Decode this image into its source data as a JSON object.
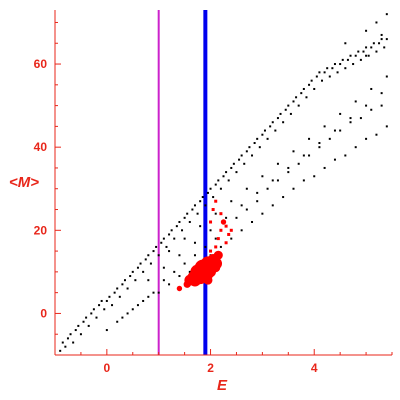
{
  "chart_data": {
    "type": "scatter",
    "title": "",
    "xlabel": "E",
    "ylabel": "<M>",
    "xlim": [
      -1.0,
      5.5
    ],
    "ylim": [
      -10,
      73
    ],
    "xticks": [
      0,
      2,
      4
    ],
    "yticks": [
      0,
      20,
      40,
      60
    ],
    "grid": false,
    "legend": "none",
    "colors": {
      "axis": "#e8261a",
      "tick_labels": "#e8261a",
      "background_points": "#000000",
      "highlight_points": "#ff0000",
      "magenta_line": "#cc22cc",
      "blue_line": "#0000ee"
    },
    "vertical_lines": [
      {
        "x": 1.0,
        "color": "#cc22cc",
        "style": "thin"
      },
      {
        "x": 1.9,
        "color": "#0000ee",
        "style": "thick"
      }
    ],
    "series": [
      {
        "kind": "background",
        "color": "#000000",
        "points": [
          [
            -0.9,
            -9
          ],
          [
            -0.85,
            -7
          ],
          [
            -0.8,
            -8
          ],
          [
            -0.75,
            -6
          ],
          [
            -0.7,
            -5
          ],
          [
            -0.65,
            -7
          ],
          [
            -0.6,
            -4
          ],
          [
            -0.55,
            -3
          ],
          [
            -0.5,
            -5
          ],
          [
            -0.45,
            -2
          ],
          [
            -0.4,
            -1
          ],
          [
            -0.35,
            -3
          ],
          [
            -0.3,
            0
          ],
          [
            -0.25,
            1
          ],
          [
            -0.2,
            -1
          ],
          [
            -0.15,
            2
          ],
          [
            -0.1,
            3
          ],
          [
            -0.05,
            1
          ],
          [
            0.0,
            3
          ],
          [
            0.05,
            4
          ],
          [
            0.1,
            2
          ],
          [
            0.15,
            5
          ],
          [
            0.2,
            6
          ],
          [
            0.25,
            4
          ],
          [
            0.3,
            7
          ],
          [
            0.35,
            8
          ],
          [
            0.4,
            6
          ],
          [
            0.45,
            9
          ],
          [
            0.5,
            10
          ],
          [
            0.55,
            8
          ],
          [
            0.6,
            11
          ],
          [
            0.65,
            12
          ],
          [
            0.7,
            10
          ],
          [
            0.75,
            13
          ],
          [
            0.8,
            14
          ],
          [
            0.85,
            12
          ],
          [
            0.9,
            15
          ],
          [
            0.95,
            16
          ],
          [
            1.0,
            14
          ],
          [
            1.05,
            17
          ],
          [
            1.1,
            18
          ],
          [
            1.15,
            16
          ],
          [
            1.2,
            19
          ],
          [
            1.25,
            20
          ],
          [
            1.3,
            18
          ],
          [
            1.35,
            21
          ],
          [
            1.4,
            22
          ],
          [
            1.45,
            20
          ],
          [
            1.5,
            23
          ],
          [
            1.55,
            24
          ],
          [
            1.6,
            22
          ],
          [
            1.65,
            25
          ],
          [
            1.7,
            26
          ],
          [
            1.75,
            24
          ],
          [
            1.8,
            27
          ],
          [
            1.85,
            28
          ],
          [
            1.9,
            26
          ],
          [
            1.95,
            29
          ],
          [
            2.0,
            30
          ],
          [
            2.05,
            28
          ],
          [
            2.1,
            31
          ],
          [
            2.15,
            32
          ],
          [
            2.2,
            30
          ],
          [
            2.25,
            33
          ],
          [
            2.3,
            34
          ],
          [
            2.35,
            32
          ],
          [
            2.4,
            35
          ],
          [
            2.45,
            36
          ],
          [
            2.5,
            34
          ],
          [
            2.55,
            37
          ],
          [
            2.6,
            38
          ],
          [
            2.65,
            36
          ],
          [
            2.7,
            39
          ],
          [
            2.75,
            40
          ],
          [
            2.8,
            38
          ],
          [
            2.85,
            41
          ],
          [
            2.9,
            42
          ],
          [
            2.95,
            40
          ],
          [
            3.0,
            43
          ],
          [
            3.05,
            44
          ],
          [
            3.1,
            42
          ],
          [
            3.15,
            45
          ],
          [
            3.2,
            46
          ],
          [
            3.25,
            44
          ],
          [
            3.3,
            47
          ],
          [
            3.35,
            48
          ],
          [
            3.4,
            46
          ],
          [
            3.45,
            49
          ],
          [
            3.5,
            50
          ],
          [
            3.55,
            48
          ],
          [
            3.6,
            51
          ],
          [
            3.65,
            52
          ],
          [
            3.7,
            50
          ],
          [
            3.75,
            53
          ],
          [
            3.8,
            54
          ],
          [
            3.85,
            52
          ],
          [
            3.9,
            55
          ],
          [
            3.95,
            56
          ],
          [
            4.0,
            54
          ],
          [
            4.05,
            57
          ],
          [
            4.1,
            58
          ],
          [
            4.15,
            56
          ],
          [
            4.2,
            58
          ],
          [
            4.25,
            59
          ],
          [
            4.3,
            57
          ],
          [
            4.35,
            59
          ],
          [
            4.4,
            60
          ],
          [
            4.45,
            58
          ],
          [
            4.5,
            60
          ],
          [
            4.55,
            61
          ],
          [
            4.6,
            59
          ],
          [
            4.65,
            61
          ],
          [
            4.7,
            62
          ],
          [
            4.75,
            60
          ],
          [
            4.8,
            62
          ],
          [
            4.85,
            63
          ],
          [
            4.9,
            61
          ],
          [
            4.95,
            63
          ],
          [
            5.0,
            64
          ],
          [
            5.05,
            62
          ],
          [
            5.1,
            64
          ],
          [
            5.15,
            65
          ],
          [
            5.2,
            63
          ],
          [
            5.25,
            65
          ],
          [
            5.3,
            66
          ],
          [
            5.35,
            64
          ],
          [
            5.4,
            66
          ],
          [
            0.0,
            -4
          ],
          [
            0.2,
            -2
          ],
          [
            0.4,
            0
          ],
          [
            0.6,
            2
          ],
          [
            0.8,
            4
          ],
          [
            1.0,
            5
          ],
          [
            1.2,
            7
          ],
          [
            1.4,
            9
          ],
          [
            1.6,
            10
          ],
          [
            1.8,
            12
          ],
          [
            2.0,
            14
          ],
          [
            2.2,
            16
          ],
          [
            2.4,
            18
          ],
          [
            2.6,
            20
          ],
          [
            2.8,
            22
          ],
          [
            3.0,
            24
          ],
          [
            3.2,
            26
          ],
          [
            3.4,
            28
          ],
          [
            3.6,
            30
          ],
          [
            3.8,
            32
          ],
          [
            4.0,
            33
          ],
          [
            4.2,
            35
          ],
          [
            4.4,
            37
          ],
          [
            4.6,
            38
          ],
          [
            4.8,
            40
          ],
          [
            5.0,
            42
          ],
          [
            5.2,
            43
          ],
          [
            5.4,
            45
          ],
          [
            0.3,
            -1
          ],
          [
            0.5,
            1
          ],
          [
            0.7,
            3
          ],
          [
            0.9,
            5
          ],
          [
            1.1,
            8
          ],
          [
            1.3,
            10
          ],
          [
            1.5,
            12
          ],
          [
            1.7,
            14
          ],
          [
            1.9,
            16
          ],
          [
            2.1,
            18
          ],
          [
            2.3,
            21
          ],
          [
            2.5,
            23
          ],
          [
            2.7,
            25
          ],
          [
            2.9,
            27
          ],
          [
            3.1,
            30
          ],
          [
            3.3,
            32
          ],
          [
            3.5,
            34
          ],
          [
            3.7,
            36
          ],
          [
            3.9,
            38
          ],
          [
            4.1,
            40
          ],
          [
            4.3,
            42
          ],
          [
            4.5,
            44
          ],
          [
            4.7,
            46
          ],
          [
            4.9,
            47
          ],
          [
            5.1,
            49
          ],
          [
            5.3,
            50
          ],
          [
            1.2,
            15
          ],
          [
            1.5,
            18
          ],
          [
            1.8,
            21
          ],
          [
            2.1,
            24
          ],
          [
            2.4,
            27
          ],
          [
            2.7,
            30
          ],
          [
            3.0,
            33
          ],
          [
            3.3,
            36
          ],
          [
            3.6,
            39
          ],
          [
            3.9,
            42
          ],
          [
            4.2,
            45
          ],
          [
            4.5,
            48
          ],
          [
            4.8,
            51
          ],
          [
            5.1,
            54
          ],
          [
            5.4,
            57
          ],
          [
            0.8,
            8
          ],
          [
            1.1,
            11
          ],
          [
            1.4,
            14
          ],
          [
            1.7,
            17
          ],
          [
            2.0,
            20
          ],
          [
            2.3,
            23
          ],
          [
            2.6,
            26
          ],
          [
            2.9,
            29
          ],
          [
            3.2,
            32
          ],
          [
            3.5,
            35
          ],
          [
            3.8,
            38
          ],
          [
            4.1,
            41
          ],
          [
            4.4,
            44
          ],
          [
            4.7,
            47
          ],
          [
            5.0,
            50
          ],
          [
            5.3,
            53
          ],
          [
            4.6,
            65
          ],
          [
            5.0,
            68
          ],
          [
            5.2,
            70
          ],
          [
            5.4,
            72
          ],
          [
            5.0,
            62
          ],
          [
            5.3,
            67
          ]
        ]
      },
      {
        "kind": "highlight",
        "color": "#ff0000",
        "points": [
          [
            1.4,
            6,
            3
          ],
          [
            1.55,
            7,
            4
          ],
          [
            1.6,
            8,
            6
          ],
          [
            1.65,
            9,
            5
          ],
          [
            1.7,
            8,
            7
          ],
          [
            1.75,
            10,
            8
          ],
          [
            1.8,
            9,
            9
          ],
          [
            1.85,
            11,
            9
          ],
          [
            1.9,
            10,
            10
          ],
          [
            1.95,
            12,
            8
          ],
          [
            2.0,
            11,
            8
          ],
          [
            2.05,
            13,
            6
          ],
          [
            2.1,
            12,
            7
          ],
          [
            2.15,
            14,
            5
          ],
          [
            1.85,
            9,
            6
          ],
          [
            1.95,
            8,
            5
          ],
          [
            2.0,
            10,
            6
          ],
          [
            2.1,
            11,
            5
          ],
          [
            2.0,
            15,
            2
          ],
          [
            2.1,
            16,
            2
          ],
          [
            2.15,
            18,
            2
          ],
          [
            2.2,
            20,
            2
          ],
          [
            2.25,
            22,
            3
          ],
          [
            2.3,
            21,
            2
          ],
          [
            2.35,
            19,
            2
          ],
          [
            2.4,
            20,
            2
          ],
          [
            2.0,
            22,
            2
          ],
          [
            2.05,
            25,
            2
          ],
          [
            2.1,
            27,
            1
          ],
          [
            2.2,
            24,
            2
          ],
          [
            2.3,
            17,
            2
          ]
        ]
      }
    ]
  }
}
